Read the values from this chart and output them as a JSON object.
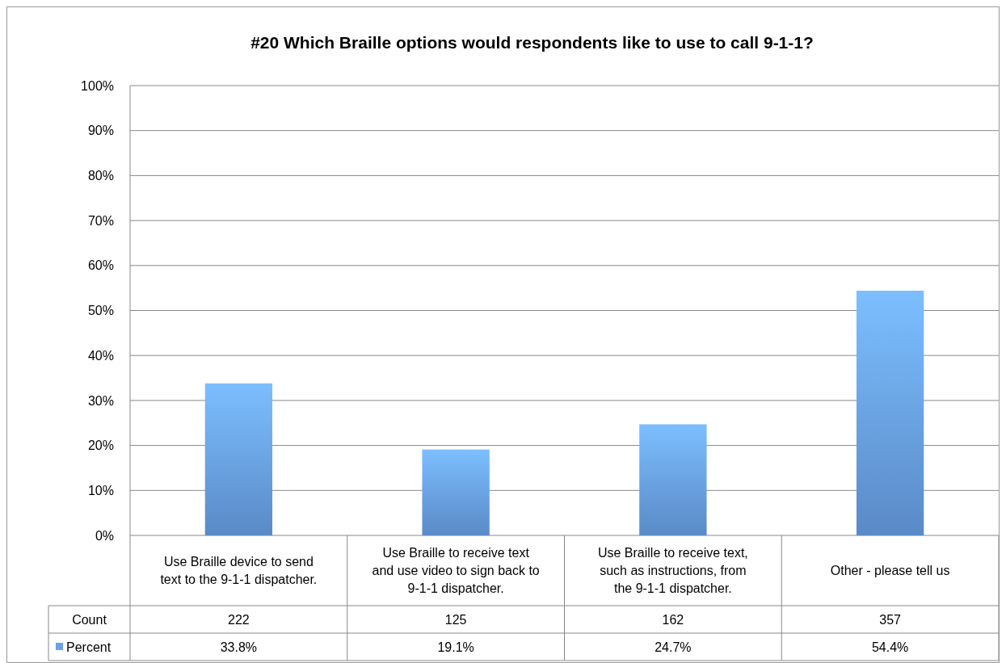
{
  "chart_data": {
    "type": "bar",
    "title": "#20 Which Braille options would respondents like to use to call 9-1-1?",
    "categories": [
      "Use Braille device to send text to the 9-1-1 dispatcher.",
      "Use Braille to receive text and use video to sign back to 9-1-1 dispatcher.",
      "Use Braille to receive text, such as instructions, from the 9-1-1 dispatcher.",
      "Other - please tell us"
    ],
    "annotations": [
      "Count",
      "222",
      "125",
      "162",
      "357"
    ],
    "series": [
      {
        "name": "Percent",
        "color": "#6aa2ea",
        "values": [
          33.8,
          19.1,
          24.7,
          54.4
        ],
        "value_labels": [
          "33.8%",
          "19.1%",
          "24.7%",
          "54.4%"
        ]
      }
    ],
    "ylim": [
      0,
      100
    ],
    "yticks": [
      {
        "value": 0,
        "label": "0%"
      },
      {
        "value": 10,
        "label": "10%"
      },
      {
        "value": 20,
        "label": "20%"
      },
      {
        "value": 30,
        "label": "30%"
      },
      {
        "value": 40,
        "label": "40%"
      },
      {
        "value": 50,
        "label": "50%"
      },
      {
        "value": 60,
        "label": "60%"
      },
      {
        "value": 70,
        "label": "70%"
      },
      {
        "value": 80,
        "label": "80%"
      },
      {
        "value": 90,
        "label": "90%"
      },
      {
        "value": 100,
        "label": "100%"
      }
    ],
    "grid": "y",
    "legend": "bottom"
  }
}
